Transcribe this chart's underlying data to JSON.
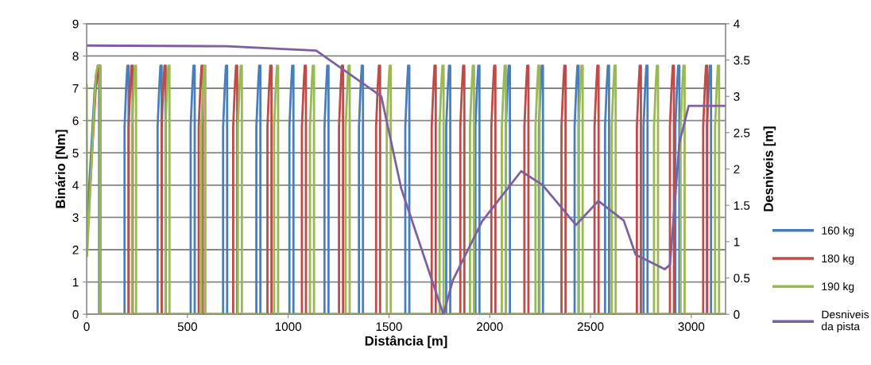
{
  "chart_data": {
    "type": "line",
    "xlabel": "Distância [m]",
    "ylabel": "Binário [Nm]",
    "y2label": "Desniveis [m]",
    "xlim": [
      0,
      3170
    ],
    "xticks": [
      0,
      500,
      1000,
      1500,
      2000,
      2500,
      3000
    ],
    "ylim": [
      0,
      9
    ],
    "yticks": [
      0,
      1,
      2,
      3,
      4,
      5,
      6,
      7,
      8,
      9
    ],
    "y2lim": [
      0,
      4
    ],
    "y2ticks": [
      0,
      0.5,
      1,
      1.5,
      2,
      2.5,
      3,
      3.5,
      4
    ],
    "grid": "y",
    "legend": "right",
    "marker": "none",
    "line_style": "solid",
    "series": [
      {
        "name": "160 kg",
        "color": "#4a7ebb",
        "x": [
          0,
          40,
          48,
          55,
          62,
          62,
          188,
          188,
          196,
          202,
          208,
          208,
          352,
          352,
          360,
          366,
          372,
          372,
          516,
          516,
          524,
          530,
          536,
          536,
          677,
          677,
          685,
          691,
          697,
          697,
          842,
          842,
          850,
          856,
          862,
          862,
          1006,
          1006,
          1014,
          1020,
          1026,
          1026,
          1180,
          1180,
          1188,
          1194,
          1200,
          1200,
          1351,
          1351,
          1359,
          1365,
          1371,
          1371,
          1581,
          1581,
          1589,
          1595,
          1601,
          1601,
          1784,
          1784,
          1792,
          1798,
          1804,
          1804,
          1929,
          1929,
          1937,
          1943,
          1949,
          1949,
          2080,
          2080,
          2088,
          2094,
          2100,
          2100,
          2244,
          2244,
          2252,
          2258,
          2264,
          2264,
          2421,
          2421,
          2429,
          2435,
          2441,
          2441,
          2572,
          2572,
          2580,
          2586,
          2592,
          2592,
          2763,
          2763,
          2771,
          2777,
          2783,
          2783,
          2921,
          2921,
          2929,
          2935,
          2941,
          2941,
          3078,
          3078,
          3086,
          3092,
          3098,
          3098,
          3160
        ],
        "values": [
          2.6,
          7,
          7.4,
          7.7,
          7.7,
          0,
          0,
          5.8,
          7,
          7.7,
          7.7,
          0,
          0,
          5.8,
          7,
          7.7,
          7.7,
          0,
          0,
          5.8,
          7,
          7.7,
          7.7,
          0,
          0,
          5.8,
          7,
          7.7,
          7.7,
          0,
          0,
          5.8,
          7,
          7.7,
          7.7,
          0,
          0,
          5.8,
          7,
          7.7,
          7.7,
          0,
          0,
          5.8,
          7,
          7.7,
          7.7,
          0,
          0,
          5.8,
          7,
          7.7,
          7.7,
          0,
          0,
          5.8,
          7,
          7.7,
          7.7,
          0,
          0,
          5.8,
          7,
          7.7,
          7.7,
          0,
          0,
          5.8,
          7,
          7.7,
          7.7,
          0,
          0,
          5.8,
          7,
          7.7,
          7.7,
          0,
          0,
          5.8,
          7,
          7.7,
          7.7,
          0,
          0,
          5.8,
          7,
          7.7,
          7.7,
          0,
          0,
          5.8,
          7,
          7.7,
          7.7,
          0,
          0,
          5.8,
          7,
          7.7,
          7.7,
          0,
          0,
          5.8,
          7,
          7.7,
          7.7,
          0,
          0,
          5.8,
          7,
          7.7,
          7.7,
          0,
          0
        ]
      },
      {
        "name": "180 kg",
        "color": "#be4b48",
        "x": [
          0,
          45,
          55,
          62,
          68,
          68,
          208,
          208,
          216,
          222,
          228,
          228,
          372,
          372,
          380,
          386,
          392,
          392,
          556,
          556,
          564,
          570,
          576,
          576,
          727,
          727,
          735,
          741,
          747,
          747,
          897,
          897,
          905,
          911,
          917,
          917,
          1068,
          1068,
          1076,
          1082,
          1088,
          1088,
          1252,
          1252,
          1260,
          1266,
          1272,
          1272,
          1436,
          1436,
          1444,
          1450,
          1456,
          1456,
          1712,
          1712,
          1720,
          1726,
          1732,
          1732,
          1854,
          1854,
          1862,
          1868,
          1874,
          1874,
          2008,
          2008,
          2016,
          2022,
          2028,
          2028,
          2172,
          2172,
          2180,
          2186,
          2192,
          2192,
          2356,
          2356,
          2364,
          2370,
          2376,
          2376,
          2520,
          2520,
          2528,
          2534,
          2540,
          2540,
          2730,
          2730,
          2738,
          2744,
          2750,
          2750,
          2894,
          2894,
          2902,
          2908,
          2914,
          2914,
          3059,
          3059,
          3067,
          3073,
          3079,
          3079,
          3160
        ],
        "values": [
          2.0,
          7,
          7.4,
          7.7,
          7.7,
          0,
          0,
          5.8,
          7,
          7.7,
          7.7,
          0,
          0,
          5.8,
          7,
          7.7,
          7.7,
          0,
          0,
          5.8,
          7,
          7.7,
          7.7,
          0,
          0,
          5.8,
          7,
          7.7,
          7.7,
          0,
          0,
          5.8,
          7,
          7.7,
          7.7,
          0,
          0,
          5.8,
          7,
          7.7,
          7.7,
          0,
          0,
          5.8,
          7,
          7.7,
          7.7,
          0,
          0,
          5.8,
          7,
          7.7,
          7.7,
          0,
          0,
          5.8,
          7,
          7.7,
          7.7,
          0,
          0,
          5.8,
          7,
          7.7,
          7.7,
          0,
          0,
          5.8,
          7,
          7.7,
          7.7,
          0,
          0,
          5.8,
          7,
          7.7,
          7.7,
          0,
          0,
          5.8,
          7,
          7.7,
          7.7,
          0,
          0,
          5.8,
          7,
          7.7,
          7.7,
          0,
          0,
          5.8,
          7,
          7.7,
          7.7,
          0,
          0,
          5.8,
          7,
          7.7,
          7.7,
          0,
          0,
          5.8,
          7,
          7.7,
          7.7,
          0,
          0
        ]
      },
      {
        "name": "190 kg",
        "color": "#98b954",
        "x": [
          0,
          2,
          45,
          55,
          66,
          66,
          225,
          225,
          233,
          239,
          245,
          245,
          391,
          391,
          399,
          405,
          411,
          411,
          569,
          569,
          577,
          583,
          589,
          589,
          750,
          750,
          758,
          764,
          770,
          770,
          930,
          930,
          938,
          944,
          950,
          950,
          1108,
          1108,
          1116,
          1122,
          1128,
          1128,
          1285,
          1285,
          1293,
          1299,
          1305,
          1305,
          1489,
          1489,
          1497,
          1503,
          1509,
          1509,
          1751,
          1751,
          1759,
          1765,
          1771,
          1771,
          1902,
          1902,
          1910,
          1916,
          1922,
          1922,
          2060,
          2060,
          2068,
          2074,
          2080,
          2080,
          2227,
          2227,
          2235,
          2241,
          2247,
          2247,
          2441,
          2441,
          2449,
          2455,
          2461,
          2461,
          2605,
          2605,
          2613,
          2619,
          2625,
          2625,
          2815,
          2815,
          2823,
          2829,
          2835,
          2835,
          2947,
          2947,
          2955,
          2961,
          2967,
          2967,
          3118,
          3118,
          3126,
          3132,
          3138,
          3138,
          3160
        ],
        "values": [
          7.1,
          1.8,
          7.4,
          7.7,
          7.7,
          0,
          0,
          5.8,
          7,
          7.7,
          7.7,
          0,
          0,
          5.8,
          7,
          7.7,
          7.7,
          0,
          0,
          5.8,
          7,
          7.7,
          7.7,
          0,
          0,
          5.8,
          7,
          7.7,
          7.7,
          0,
          0,
          5.8,
          7,
          7.7,
          7.7,
          0,
          0,
          5.8,
          7,
          7.7,
          7.7,
          0,
          0,
          5.8,
          7,
          7.7,
          7.7,
          0,
          0,
          5.8,
          7,
          7.7,
          7.7,
          0,
          0,
          5.8,
          7,
          7.7,
          7.7,
          0,
          0,
          5.8,
          7,
          7.7,
          7.7,
          0,
          0,
          5.8,
          7,
          7.7,
          7.7,
          0,
          0,
          5.8,
          7,
          7.7,
          7.7,
          0,
          0,
          5.8,
          7,
          7.7,
          7.7,
          0,
          0,
          5.8,
          7,
          7.7,
          7.7,
          0,
          0,
          5.8,
          7,
          7.7,
          7.7,
          0,
          0,
          5.8,
          7,
          7.7,
          7.7,
          0,
          0,
          5.8,
          7,
          7.7,
          7.7,
          0,
          0
        ]
      },
      {
        "name": "Desniveis\nda pista",
        "color": "#7d60a0",
        "axis": "y2",
        "x": [
          0,
          694,
          1139,
          1462,
          1561,
          1770,
          1817,
          1962,
          2156,
          2262,
          2428,
          2539,
          2665,
          2724,
          2868,
          2894,
          2941,
          2987,
          3170
        ],
        "values": [
          3.7,
          3.69,
          3.63,
          3.0,
          1.73,
          0,
          0.47,
          1.28,
          1.97,
          1.78,
          1.23,
          1.56,
          1.29,
          0.82,
          0.62,
          0.68,
          2.36,
          2.87,
          2.87
        ]
      }
    ]
  }
}
